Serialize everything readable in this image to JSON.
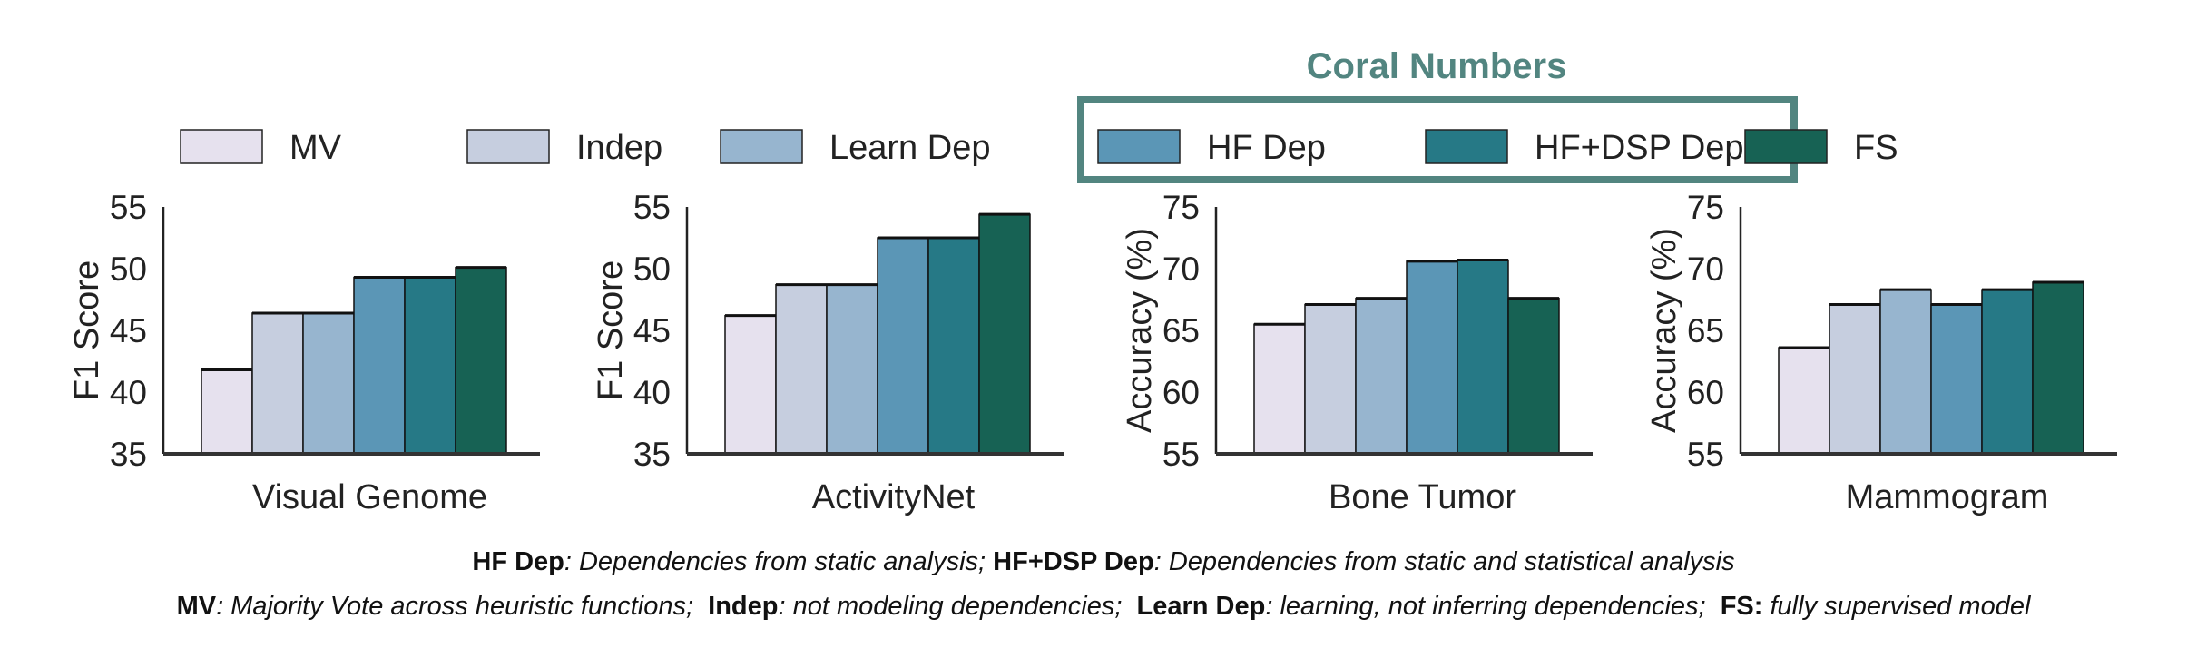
{
  "legend_title": "Coral Numbers",
  "colors": {
    "box": "#528580",
    "axis": "#222222"
  },
  "chart_data": [
    {
      "type": "bar",
      "title": "",
      "xlabel": "Visual Genome",
      "ylabel": "F1 Score",
      "ylim": [
        35,
        55
      ],
      "yticks": [
        "35",
        "40",
        "45",
        "50",
        "55"
      ],
      "series": [
        {
          "name": "MV",
          "values": [
            41.8
          ]
        },
        {
          "name": "Indep",
          "values": [
            46.4
          ]
        },
        {
          "name": "Learn Dep",
          "values": [
            46.4
          ]
        },
        {
          "name": "HF Dep",
          "values": [
            49.3
          ]
        },
        {
          "name": "HF+DSP Dep",
          "values": [
            49.3
          ]
        },
        {
          "name": "FS",
          "values": [
            50.1
          ]
        }
      ]
    },
    {
      "type": "bar",
      "title": "",
      "xlabel": "ActivityNet",
      "ylabel": "F1 Score",
      "ylim": [
        35,
        55
      ],
      "yticks": [
        "35",
        "40",
        "45",
        "50",
        "55"
      ],
      "series": [
        {
          "name": "MV",
          "values": [
            46.2
          ]
        },
        {
          "name": "Indep",
          "values": [
            48.7
          ]
        },
        {
          "name": "Learn Dep",
          "values": [
            48.7
          ]
        },
        {
          "name": "HF Dep",
          "values": [
            52.5
          ]
        },
        {
          "name": "HF+DSP Dep",
          "values": [
            52.5
          ]
        },
        {
          "name": "FS",
          "values": [
            54.4
          ]
        }
      ]
    },
    {
      "type": "bar",
      "title": "",
      "xlabel": "Bone Tumor",
      "ylabel": "Accuracy (%)",
      "ylim": [
        55,
        75
      ],
      "yticks": [
        "55",
        "60",
        "65",
        "70",
        "75"
      ],
      "series": [
        {
          "name": "MV",
          "values": [
            65.5
          ]
        },
        {
          "name": "Indep",
          "values": [
            67.1
          ]
        },
        {
          "name": "Learn Dep",
          "values": [
            67.6
          ]
        },
        {
          "name": "HF Dep",
          "values": [
            70.6
          ]
        },
        {
          "name": "HF+DSP Dep",
          "values": [
            70.7
          ]
        },
        {
          "name": "FS",
          "values": [
            67.6
          ]
        }
      ]
    },
    {
      "type": "bar",
      "title": "",
      "xlabel": "Mammogram",
      "ylabel": "Accuracy (%)",
      "ylim": [
        55,
        75
      ],
      "yticks": [
        "55",
        "60",
        "65",
        "70",
        "75"
      ],
      "series": [
        {
          "name": "MV",
          "values": [
            63.6
          ]
        },
        {
          "name": "Indep",
          "values": [
            67.1
          ]
        },
        {
          "name": "Learn Dep",
          "values": [
            68.3
          ]
        },
        {
          "name": "HF Dep",
          "values": [
            67.1
          ]
        },
        {
          "name": "HF+DSP Dep",
          "values": [
            68.3
          ]
        },
        {
          "name": "FS",
          "values": [
            68.9
          ]
        }
      ]
    }
  ],
  "legend": [
    {
      "label": "MV",
      "color": "#e6e1ee"
    },
    {
      "label": "Indep",
      "color": "#c6cedf"
    },
    {
      "label": "Learn Dep",
      "color": "#97b5cf"
    },
    {
      "label": "HF Dep",
      "color": "#5b96b6"
    },
    {
      "label": "HF+DSP Dep",
      "color": "#267986"
    },
    {
      "label": "FS",
      "color": "#176254"
    }
  ],
  "caption": {
    "line1": [
      {
        "term": "HF Dep",
        "desc": ": Dependencies from static analysis; "
      },
      {
        "term": "HF+DSP Dep",
        "desc": ": Dependencies from static and statistical analysis"
      }
    ],
    "line2": [
      {
        "term": "MV",
        "desc": ": Majority Vote across heuristic functions;  "
      },
      {
        "term": "Indep",
        "desc": ": not modeling dependencies;  "
      },
      {
        "term": "Learn Dep",
        "desc": ": learning, not inferring dependencies;  "
      },
      {
        "term": "FS:",
        "desc": " fully supervised model"
      }
    ]
  }
}
